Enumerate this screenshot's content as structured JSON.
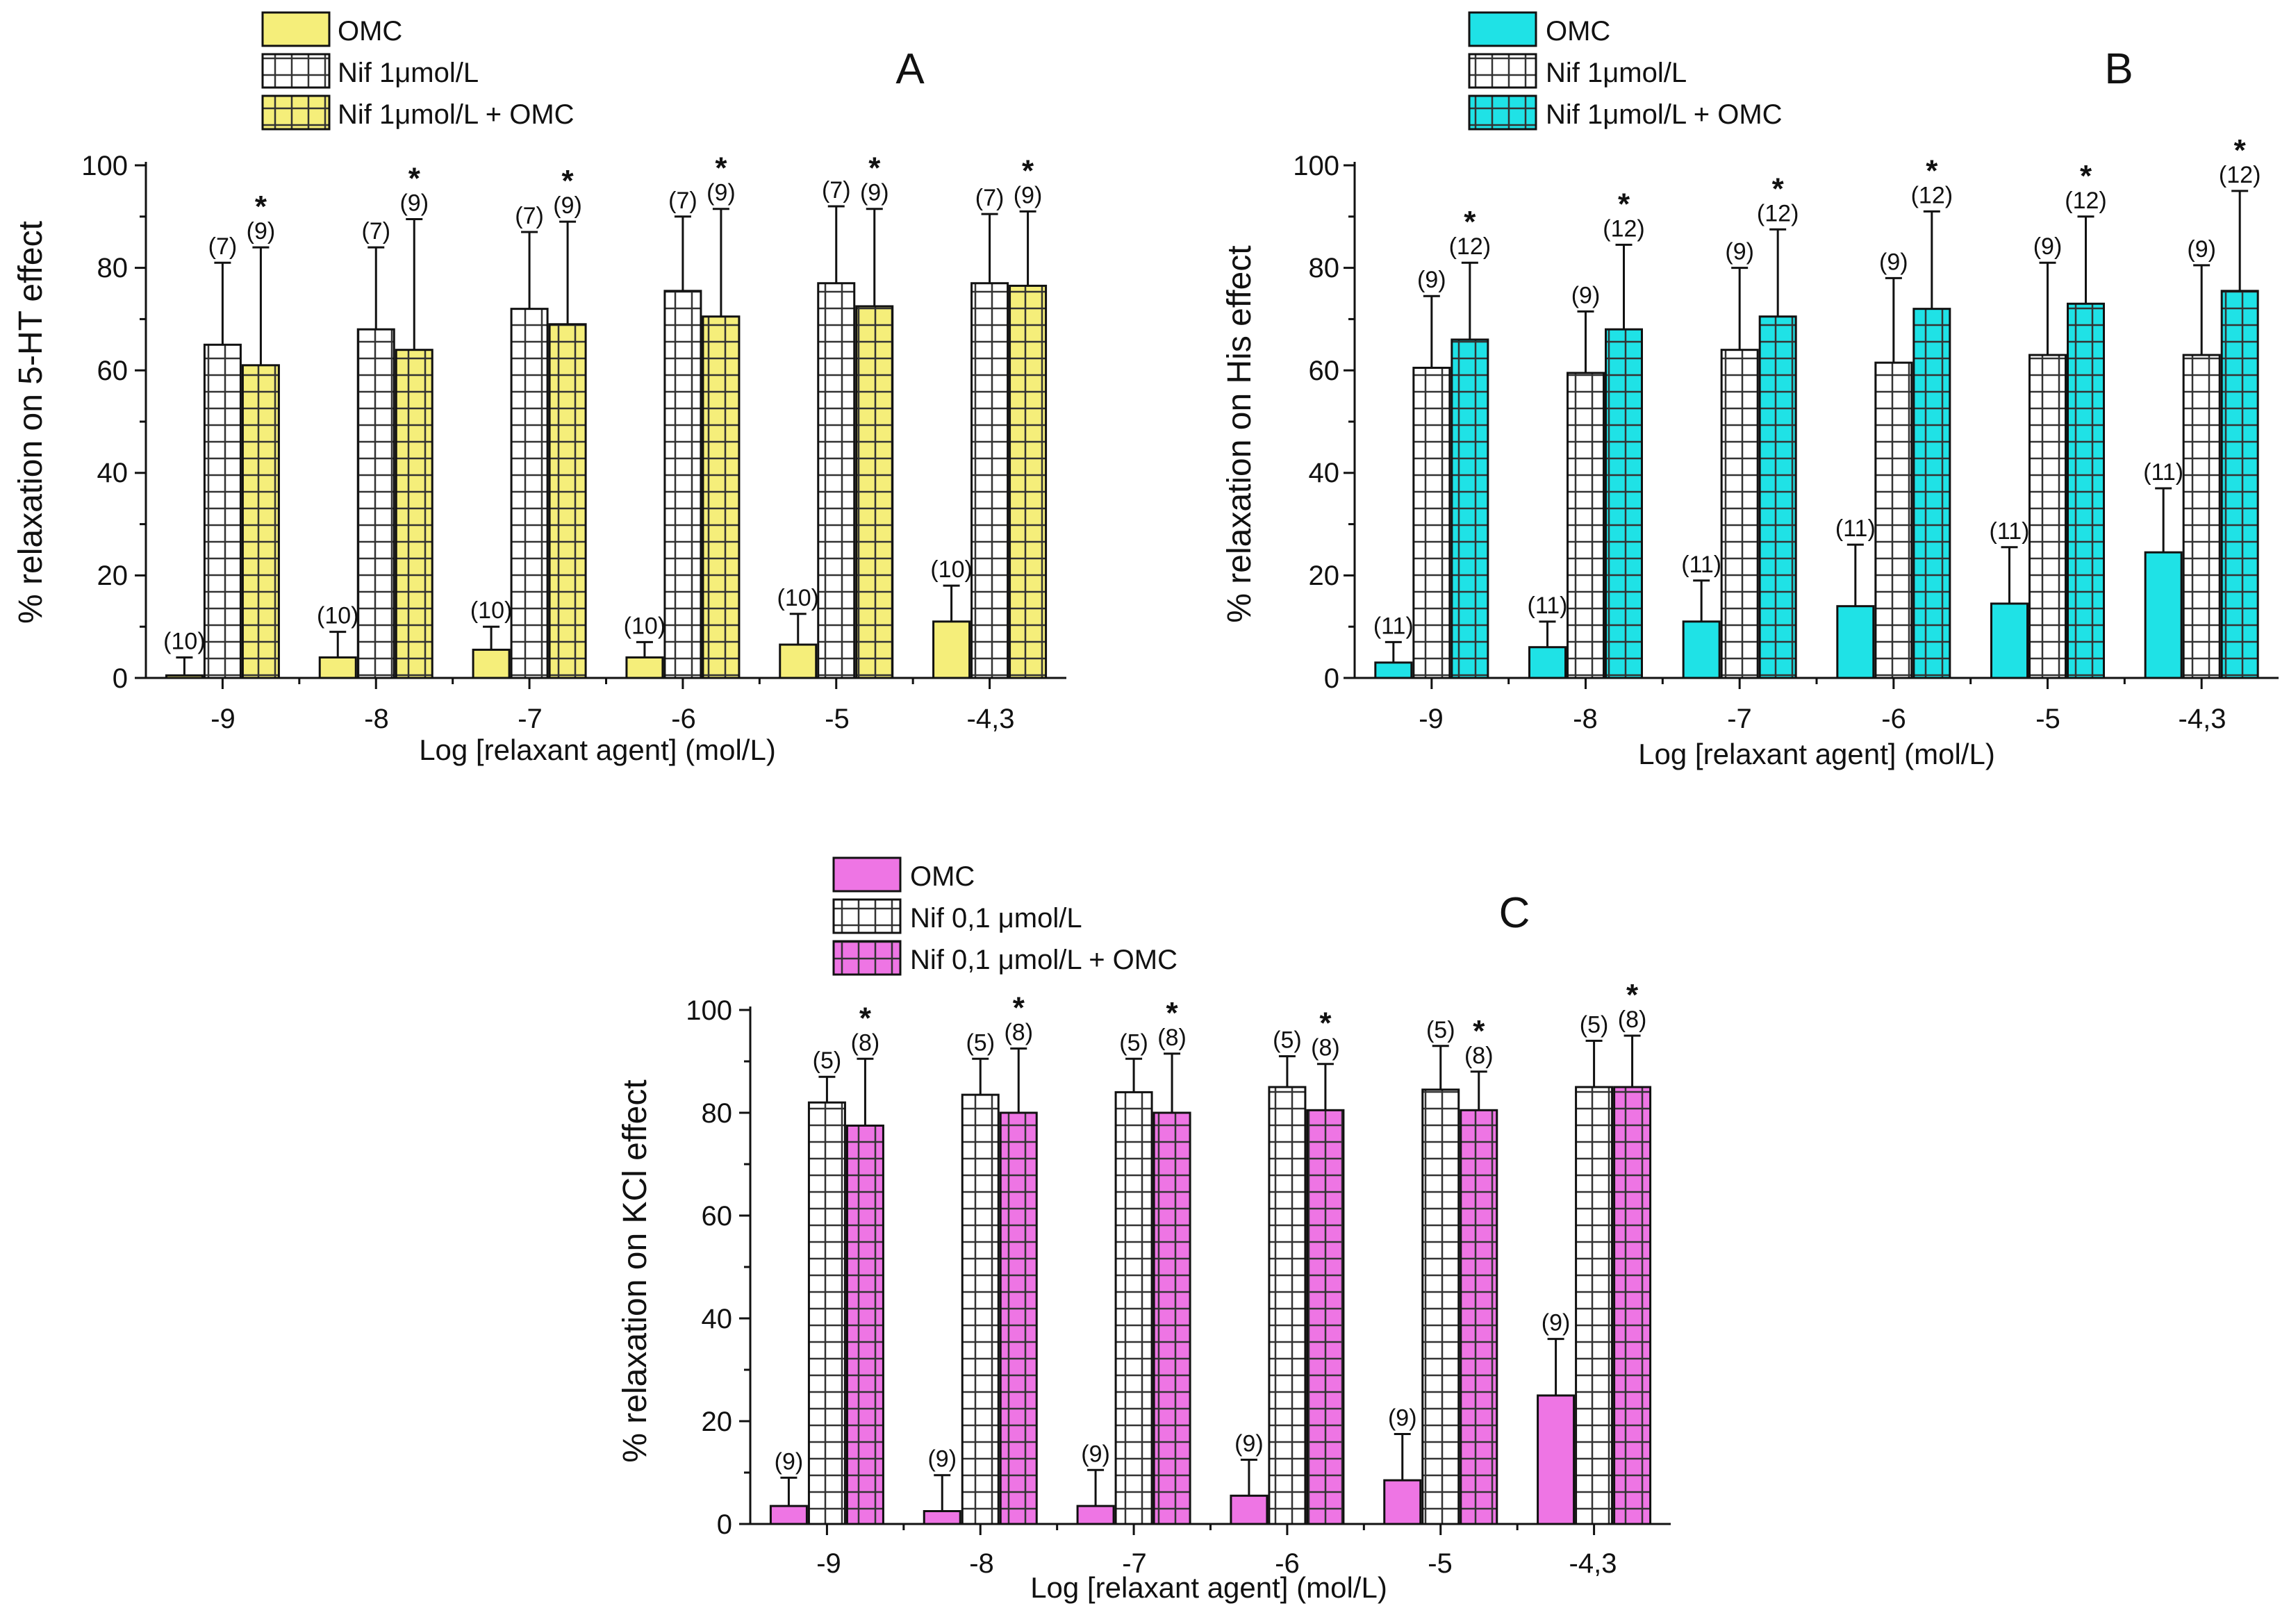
{
  "colors": {
    "panel_A": "#f5ee7a",
    "panel_B": "#1fe2e6",
    "panel_C": "#ee75e4",
    "nif": "#ffffff",
    "ink": "#111111",
    "grid_pattern": "#444444"
  },
  "chart_data": [
    {
      "id": "A",
      "type": "bar",
      "panel_letter": "A",
      "categories": [
        "-9",
        "-8",
        "-7",
        "-6",
        "-5",
        "-4,3"
      ],
      "ylabel": "% relaxation on 5-HT effect",
      "xlabel": "Log [relaxant agent] (mol/L)",
      "ylim": [
        0,
        100
      ],
      "yticks": [
        "0",
        "20",
        "40",
        "60",
        "80",
        "100"
      ],
      "legend": [
        "OMC",
        "Nif 1μmol/L",
        "Nif 1μmol/L + OMC"
      ],
      "legend_placement": "top-left",
      "series": [
        {
          "name": "OMC",
          "pattern": "solid",
          "values": [
            0.5,
            4,
            5.5,
            4,
            6.5,
            11
          ],
          "errors": [
            3.5,
            5,
            4.5,
            3,
            6,
            7
          ],
          "n_labels": [
            "(10)",
            "(10)",
            "(10)",
            "(10)",
            "(10)",
            "(10)"
          ],
          "stars": [
            false,
            false,
            false,
            false,
            false,
            false
          ]
        },
        {
          "name": "Nif 1μmol/L",
          "pattern": "grid",
          "values": [
            65,
            68,
            72,
            75.5,
            77,
            77
          ],
          "errors": [
            16,
            16,
            15,
            14.5,
            15,
            13.5
          ],
          "n_labels": [
            "(7)",
            "(7)",
            "(7)",
            "(7)",
            "(7)",
            "(7)"
          ],
          "stars": [
            false,
            false,
            false,
            false,
            false,
            false
          ]
        },
        {
          "name": "Nif 1μmol/L + OMC",
          "pattern": "grid",
          "values": [
            61,
            64,
            69,
            70.5,
            72.5,
            76.5
          ],
          "errors": [
            23,
            25.5,
            20,
            21,
            19,
            14.5
          ],
          "n_labels": [
            "(9)",
            "(9)",
            "(9)",
            "(9)",
            "(9)",
            "(9)"
          ],
          "stars": [
            true,
            true,
            true,
            true,
            true,
            true
          ]
        }
      ]
    },
    {
      "id": "B",
      "type": "bar",
      "panel_letter": "B",
      "categories": [
        "-9",
        "-8",
        "-7",
        "-6",
        "-5",
        "-4,3"
      ],
      "ylabel": "% relaxation on His effect",
      "xlabel": "Log [relaxant agent] (mol/L)",
      "ylim": [
        0,
        100
      ],
      "yticks": [
        "0",
        "20",
        "40",
        "60",
        "80",
        "100"
      ],
      "legend": [
        "OMC",
        "Nif 1μmol/L",
        "Nif 1μmol/L + OMC"
      ],
      "legend_placement": "top-left",
      "series": [
        {
          "name": "OMC",
          "pattern": "solid",
          "values": [
            3,
            6,
            11,
            14,
            14.5,
            24.5
          ],
          "errors": [
            4,
            5,
            8,
            12,
            11,
            12.5
          ],
          "n_labels": [
            "(11)",
            "(11)",
            "(11)",
            "(11)",
            "(11)",
            "(11)"
          ],
          "stars": [
            false,
            false,
            false,
            false,
            false,
            false
          ]
        },
        {
          "name": "Nif 1μmol/L",
          "pattern": "grid",
          "values": [
            60.5,
            59.5,
            64,
            61.5,
            63,
            63
          ],
          "errors": [
            14,
            12,
            16,
            16.5,
            18,
            17.5
          ],
          "n_labels": [
            "(9)",
            "(9)",
            "(9)",
            "(9)",
            "(9)",
            "(9)"
          ],
          "stars": [
            false,
            false,
            false,
            false,
            false,
            false
          ]
        },
        {
          "name": "Nif 1μmol/L + OMC",
          "pattern": "grid",
          "values": [
            66,
            68,
            70.5,
            72,
            73,
            75.5
          ],
          "errors": [
            15,
            16.5,
            17,
            19,
            17,
            19.5
          ],
          "n_labels": [
            "(12)",
            "(12)",
            "(12)",
            "(12)",
            "(12)",
            "(12)"
          ],
          "stars": [
            true,
            true,
            true,
            true,
            true,
            true
          ]
        }
      ]
    },
    {
      "id": "C",
      "type": "bar",
      "panel_letter": "C",
      "categories": [
        "-9",
        "-8",
        "-7",
        "-6",
        "-5",
        "-4,3"
      ],
      "ylabel": "% relaxation on KCl effect",
      "xlabel": "Log [relaxant agent] (mol/L)",
      "ylim": [
        0,
        100
      ],
      "yticks": [
        "0",
        "20",
        "40",
        "60",
        "80",
        "100"
      ],
      "legend": [
        "OMC",
        "Nif 0,1 μmol/L",
        "Nif 0,1 μmol/L + OMC"
      ],
      "legend_placement": "top-left",
      "series": [
        {
          "name": "OMC",
          "pattern": "solid",
          "values": [
            3.5,
            2.5,
            3.5,
            5.5,
            8.5,
            25
          ],
          "errors": [
            5.5,
            7,
            7,
            7,
            9,
            11
          ],
          "n_labels": [
            "(9)",
            "(9)",
            "(9)",
            "(9)",
            "(9)",
            "(9)"
          ],
          "stars": [
            false,
            false,
            false,
            false,
            false,
            false
          ]
        },
        {
          "name": "Nif 0,1 μmol/L",
          "pattern": "grid",
          "values": [
            82,
            83.5,
            84,
            85,
            84.5,
            85
          ],
          "errors": [
            5,
            7,
            6.5,
            6,
            8.5,
            9
          ],
          "n_labels": [
            "(5)",
            "(5)",
            "(5)",
            "(5)",
            "(5)",
            "(5)"
          ],
          "stars": [
            false,
            false,
            false,
            false,
            false,
            false
          ]
        },
        {
          "name": "Nif 0,1 μmol/L + OMC",
          "pattern": "grid",
          "values": [
            77.5,
            80,
            80,
            80.5,
            80.5,
            85
          ],
          "errors": [
            13,
            12.5,
            11.5,
            9,
            7.5,
            10
          ],
          "n_labels": [
            "(8)",
            "(8)",
            "(8)",
            "(8)",
            "(8)",
            "(8)"
          ],
          "stars": [
            true,
            true,
            true,
            true,
            true,
            true
          ]
        }
      ]
    }
  ]
}
